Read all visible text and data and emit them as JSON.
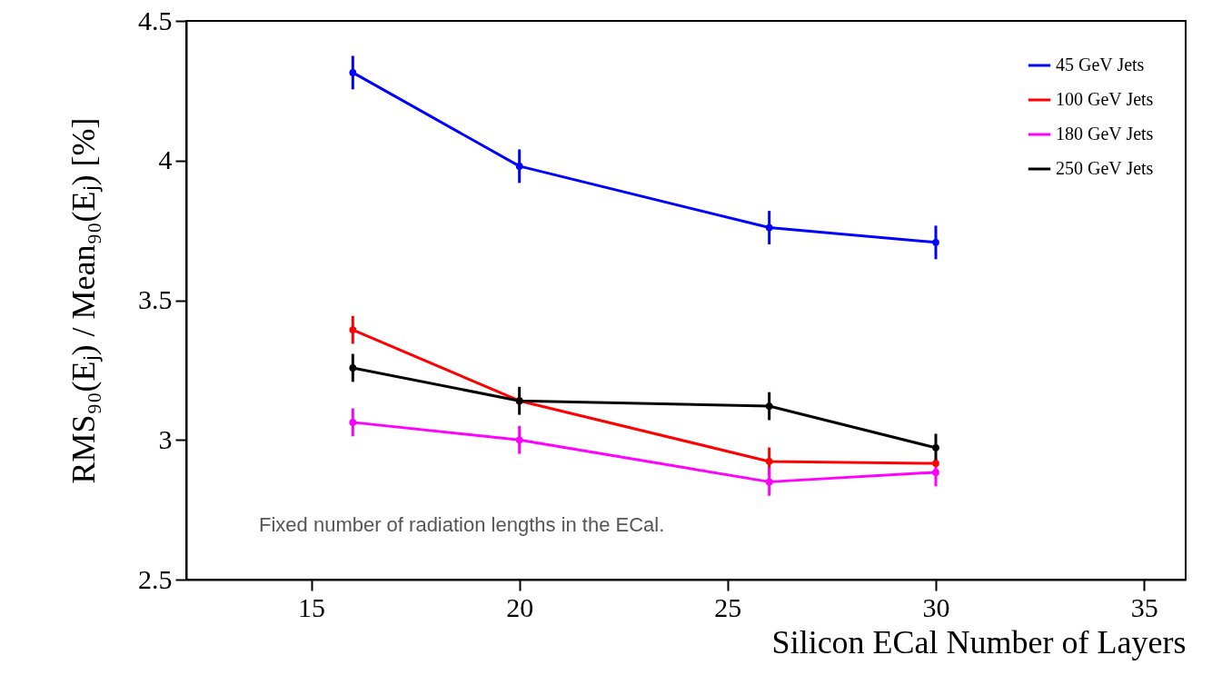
{
  "chart_data": {
    "type": "line",
    "xlabel": "Silicon ECal Number of Layers",
    "ylabel": "RMS₉₀(Eⱼ) / Mean₉₀(Eⱼ) [%]",
    "x": [
      16,
      20,
      26,
      30
    ],
    "xlim": [
      12,
      36
    ],
    "xticks": [
      15,
      20,
      25,
      30,
      35
    ],
    "ylim": [
      2.5,
      4.5
    ],
    "yticks": [
      2.5,
      3,
      3.5,
      4,
      4.5
    ],
    "marker": "circle",
    "grid": false,
    "legend": "top right",
    "annotations": [
      "Fixed number of radiation lengths in the ECal."
    ],
    "series": [
      {
        "name": "45 GeV Jets",
        "color": "#0000ff",
        "values": [
          4.315,
          3.98,
          3.76,
          3.707
        ],
        "errors": [
          0.06,
          0.06,
          0.06,
          0.06
        ]
      },
      {
        "name": "100 GeV Jets",
        "color": "#ff0000",
        "values": [
          3.394,
          3.14,
          2.923,
          2.916
        ],
        "errors": [
          0.05,
          null,
          0.05,
          null
        ]
      },
      {
        "name": "180 GeV Jets",
        "color": "#ff00ff",
        "values": [
          3.063,
          3.0,
          2.85,
          2.884
        ],
        "errors": [
          0.05,
          0.05,
          0.05,
          0.05
        ]
      },
      {
        "name": "250 GeV Jets",
        "color": "#000000",
        "values": [
          3.258,
          3.14,
          3.121,
          2.972
        ],
        "errors": [
          0.05,
          0.05,
          0.05,
          0.05
        ]
      }
    ]
  }
}
